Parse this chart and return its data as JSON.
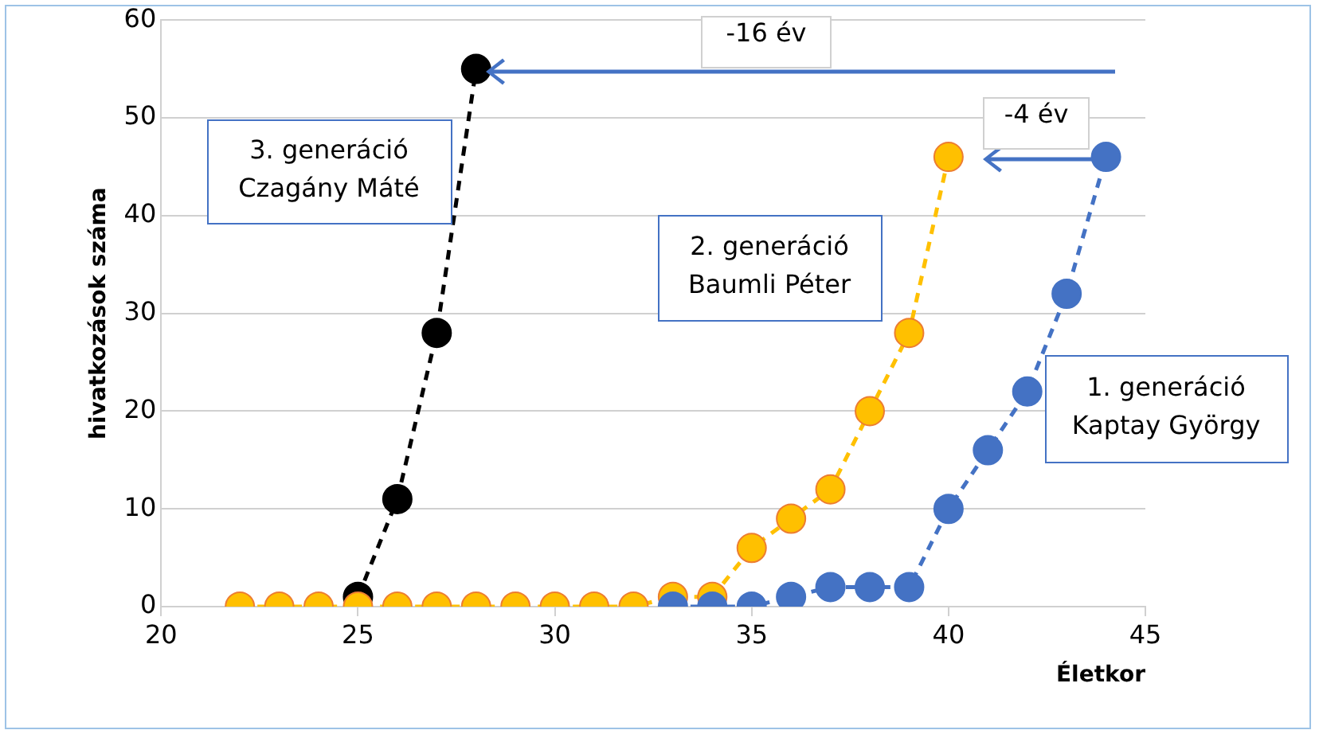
{
  "chart_data": {
    "type": "line",
    "xlabel": "Életkor",
    "ylabel": "hivatkozások száma",
    "xlim": [
      20,
      45
    ],
    "xticks": [
      20,
      25,
      30,
      35,
      40,
      45
    ],
    "ylim": [
      0,
      60
    ],
    "yticks": [
      0,
      10,
      20,
      30,
      40,
      50,
      60
    ],
    "grid": "y",
    "legend": false,
    "marker": "circle",
    "line_style": "dashed",
    "series": [
      {
        "name": "1. generáció\nKaptay György",
        "color": "#4472c4",
        "x": [
          33,
          34,
          35,
          36,
          37,
          38,
          39,
          40,
          41,
          42,
          43,
          44
        ],
        "values": [
          0,
          0,
          0,
          1,
          2,
          2,
          2,
          10,
          16,
          22,
          32,
          46
        ]
      },
      {
        "name": "2. generáció\nBaumli Péter",
        "color": "#ffc000",
        "x": [
          22,
          23,
          24,
          25,
          26,
          27,
          28,
          29,
          30,
          31,
          32,
          33,
          34,
          35,
          36,
          37,
          38,
          39,
          40
        ],
        "values": [
          0,
          0,
          0,
          0,
          0,
          0,
          0,
          0,
          0,
          0,
          0,
          1,
          1,
          6,
          9,
          12,
          20,
          28,
          46
        ]
      },
      {
        "name": "3. generáció\nCzagány Máté",
        "color": "#000000",
        "x": [
          25,
          26,
          27,
          28
        ],
        "values": [
          1,
          11,
          28,
          55
        ]
      }
    ],
    "annotations": [
      "-16 év",
      "-4 év"
    ]
  }
}
